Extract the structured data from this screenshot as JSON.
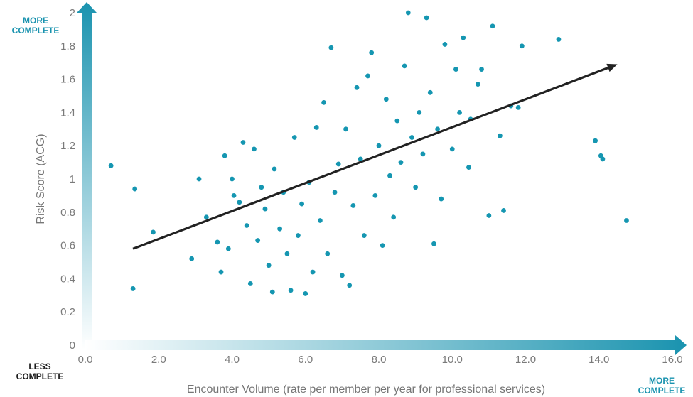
{
  "corner_labels": {
    "y_more": "MORE COMPLETE",
    "x_less": "LESS COMPLETE",
    "x_more": "MORE COMPLETE"
  },
  "colors": {
    "points": "#1596b1",
    "trend": "#222222",
    "axis_arrow": "#1a93af",
    "corner_text": "#1a93af",
    "less_text": "#1a1a1a",
    "tick_text": "#7a7a7a"
  },
  "chart_data": {
    "type": "scatter",
    "title": "",
    "xlabel": "Encounter Volume (rate per member per year for professional services)",
    "ylabel": "Risk Score (ACG)",
    "xlim": [
      0,
      16
    ],
    "ylim": [
      0,
      2
    ],
    "x_ticks": [
      "0.0",
      "2.0",
      "4.0",
      "6.0",
      "8.0",
      "10.0",
      "12.0",
      "14.0",
      "16.0"
    ],
    "y_ticks": [
      "0",
      "0.2",
      "0.4",
      "0.6",
      "0.8",
      "1",
      "1.2",
      "1.4",
      "1.6",
      "1.8",
      "2"
    ],
    "grid": false,
    "trendline": {
      "x": [
        1.3,
        14.5
      ],
      "y": [
        0.58,
        1.69
      ]
    },
    "points": [
      [
        0.7,
        1.08
      ],
      [
        1.35,
        0.94
      ],
      [
        1.3,
        0.34
      ],
      [
        1.85,
        0.68
      ],
      [
        2.9,
        0.52
      ],
      [
        3.1,
        1.0
      ],
      [
        3.3,
        0.77
      ],
      [
        3.6,
        0.62
      ],
      [
        3.7,
        0.44
      ],
      [
        3.8,
        1.14
      ],
      [
        3.9,
        0.58
      ],
      [
        4.0,
        1.0
      ],
      [
        4.05,
        0.9
      ],
      [
        4.2,
        0.86
      ],
      [
        4.3,
        1.22
      ],
      [
        4.4,
        0.72
      ],
      [
        4.5,
        0.37
      ],
      [
        4.6,
        1.18
      ],
      [
        4.7,
        0.63
      ],
      [
        4.8,
        0.95
      ],
      [
        4.9,
        0.82
      ],
      [
        5.0,
        0.48
      ],
      [
        5.1,
        0.32
      ],
      [
        5.15,
        1.06
      ],
      [
        5.3,
        0.7
      ],
      [
        5.4,
        0.92
      ],
      [
        5.5,
        0.55
      ],
      [
        5.6,
        0.33
      ],
      [
        5.7,
        1.25
      ],
      [
        5.8,
        0.66
      ],
      [
        5.9,
        0.85
      ],
      [
        6.0,
        0.31
      ],
      [
        6.1,
        0.98
      ],
      [
        6.2,
        0.44
      ],
      [
        6.3,
        1.31
      ],
      [
        6.4,
        0.75
      ],
      [
        6.5,
        1.46
      ],
      [
        6.6,
        0.55
      ],
      [
        6.7,
        1.79
      ],
      [
        6.8,
        0.92
      ],
      [
        6.9,
        1.09
      ],
      [
        7.0,
        0.42
      ],
      [
        7.1,
        1.3
      ],
      [
        7.2,
        0.36
      ],
      [
        7.3,
        0.84
      ],
      [
        7.4,
        1.55
      ],
      [
        7.5,
        1.12
      ],
      [
        7.6,
        0.66
      ],
      [
        7.7,
        1.62
      ],
      [
        7.8,
        1.76
      ],
      [
        7.9,
        0.9
      ],
      [
        8.0,
        1.2
      ],
      [
        8.1,
        0.6
      ],
      [
        8.2,
        1.48
      ],
      [
        8.3,
        1.02
      ],
      [
        8.4,
        0.77
      ],
      [
        8.5,
        1.35
      ],
      [
        8.6,
        1.1
      ],
      [
        8.7,
        1.68
      ],
      [
        8.8,
        2.0
      ],
      [
        8.9,
        1.25
      ],
      [
        9.0,
        0.95
      ],
      [
        9.1,
        1.4
      ],
      [
        9.2,
        1.15
      ],
      [
        9.3,
        1.97
      ],
      [
        9.4,
        1.52
      ],
      [
        9.5,
        0.61
      ],
      [
        9.6,
        1.3
      ],
      [
        9.7,
        0.88
      ],
      [
        9.8,
        1.81
      ],
      [
        10.0,
        1.18
      ],
      [
        10.1,
        1.66
      ],
      [
        10.2,
        1.4
      ],
      [
        10.3,
        1.85
      ],
      [
        10.45,
        1.07
      ],
      [
        10.5,
        1.36
      ],
      [
        10.7,
        1.57
      ],
      [
        10.8,
        1.66
      ],
      [
        11.0,
        0.78
      ],
      [
        11.1,
        1.92
      ],
      [
        11.3,
        1.26
      ],
      [
        11.4,
        0.81
      ],
      [
        11.6,
        1.44
      ],
      [
        11.8,
        1.43
      ],
      [
        11.9,
        1.8
      ],
      [
        12.9,
        1.84
      ],
      [
        13.9,
        1.23
      ],
      [
        14.05,
        1.14
      ],
      [
        14.1,
        1.12
      ],
      [
        14.75,
        0.75
      ]
    ]
  }
}
